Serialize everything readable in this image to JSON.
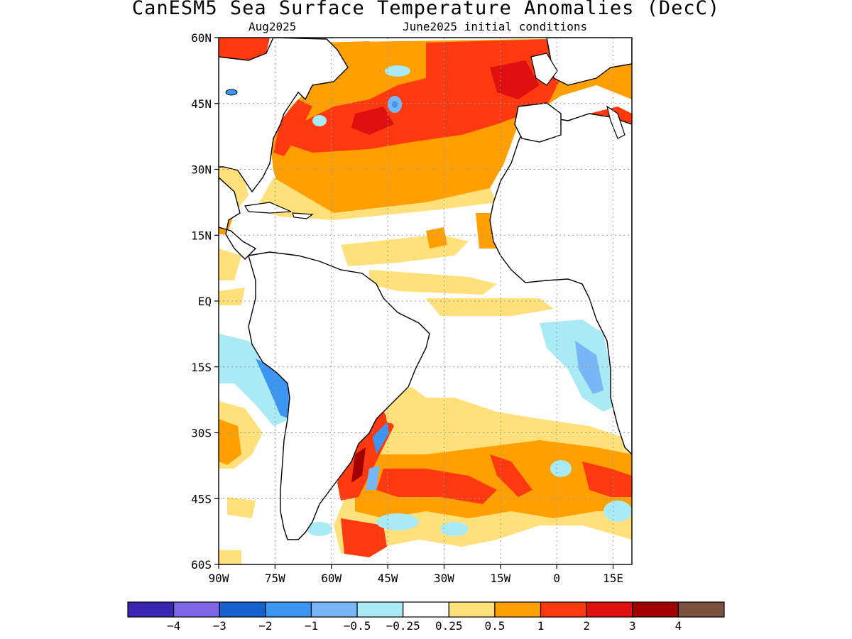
{
  "title": "CanESM5 Sea Surface Temperature Anomalies (DecC)",
  "subtitle_left": "Aug2025",
  "subtitle_right": "June2025 initial conditions",
  "map": {
    "lon_range": [
      -90,
      20
    ],
    "lat_range": [
      -60,
      60
    ],
    "lat_ticks": [
      {
        "value": 60,
        "label": "60N"
      },
      {
        "value": 45,
        "label": "45N"
      },
      {
        "value": 30,
        "label": "30N"
      },
      {
        "value": 15,
        "label": "15N"
      },
      {
        "value": 0,
        "label": "EQ"
      },
      {
        "value": -15,
        "label": "15S"
      },
      {
        "value": -30,
        "label": "30S"
      },
      {
        "value": -45,
        "label": "45S"
      },
      {
        "value": -60,
        "label": "60S"
      }
    ],
    "lon_ticks": [
      {
        "value": -90,
        "label": "90W"
      },
      {
        "value": -75,
        "label": "75W"
      },
      {
        "value": -60,
        "label": "60W"
      },
      {
        "value": -45,
        "label": "45W"
      },
      {
        "value": -30,
        "label": "30W"
      },
      {
        "value": -15,
        "label": "15W"
      },
      {
        "value": 0,
        "label": "0"
      },
      {
        "value": 15,
        "label": "15E"
      }
    ],
    "gridlines": true
  },
  "colorbar": {
    "colors": [
      "#3a26b0",
      "#7d67e6",
      "#1660d0",
      "#3a96f0",
      "#78b6f5",
      "#aaeaf5",
      "#ffffff",
      "#ffe07a",
      "#ffa000",
      "#ff3a10",
      "#e01010",
      "#a00000",
      "#7a5040"
    ],
    "labels": [
      "−4",
      "−3",
      "−2",
      "−1",
      "−0.5",
      "−0.25",
      "0.25",
      "0.5",
      "1",
      "2",
      "3",
      "4"
    ]
  },
  "colors": {
    "land": "#ffffff",
    "coastline": "#000000",
    "grid": "#9a9a9a"
  }
}
